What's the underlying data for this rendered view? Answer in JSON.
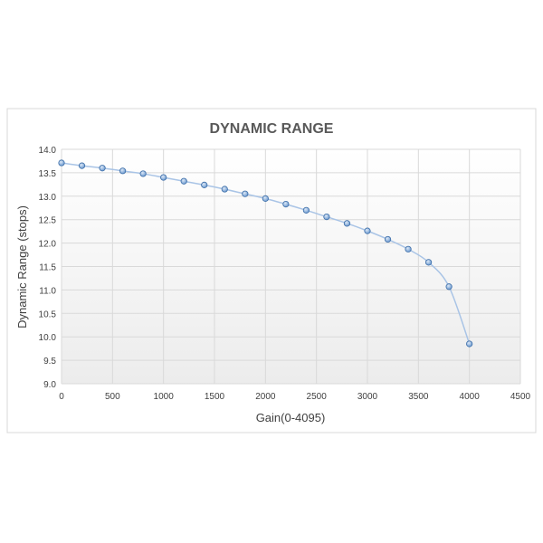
{
  "chart_data": {
    "type": "line",
    "title": "DYNAMIC RANGE",
    "xlabel": "Gain(0-4095)",
    "ylabel": "Dynamic Range (stops)",
    "xlim": [
      0,
      4500
    ],
    "ylim": [
      9.0,
      14.0
    ],
    "x_ticks": [
      "0",
      "500",
      "1000",
      "1500",
      "2000",
      "2500",
      "3000",
      "3500",
      "4000",
      "4500"
    ],
    "y_ticks": [
      "9.0",
      "9.5",
      "10.0",
      "10.5",
      "11.0",
      "11.5",
      "12.0",
      "12.5",
      "13.0",
      "13.5",
      "14.0"
    ],
    "grid": true,
    "series": [
      {
        "x": [
          0,
          200,
          400,
          600,
          800,
          1000,
          1200,
          1400,
          1600,
          1800,
          2000,
          2200,
          2400,
          2600,
          2800,
          3000,
          3200,
          3400,
          3600,
          3800,
          4000
        ],
        "y": [
          13.71,
          13.65,
          13.6,
          13.54,
          13.48,
          13.4,
          13.32,
          13.24,
          13.15,
          13.05,
          12.95,
          12.83,
          12.7,
          12.56,
          12.42,
          12.26,
          12.08,
          11.87,
          11.59,
          11.07,
          9.85
        ]
      }
    ],
    "colors": {
      "line": "#a9c4e6",
      "marker_fill": "#6a98cf",
      "marker_stroke": "#3d6ea8",
      "grid": "#d9d9d9",
      "plot_bg_top": "#ffffff",
      "plot_bg_bottom": "#ececec",
      "title": "#595959",
      "axis_text": "#404040"
    }
  }
}
